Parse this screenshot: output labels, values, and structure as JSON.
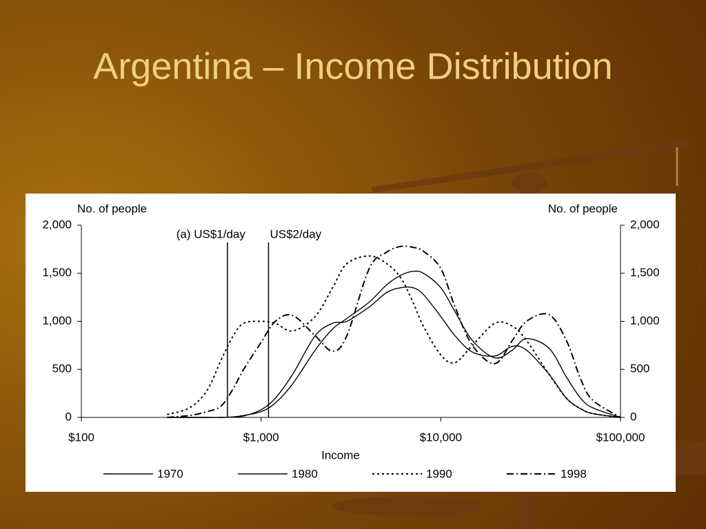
{
  "slide": {
    "title": "Argentina – Income Distribution"
  },
  "chart_data": {
    "type": "line",
    "ylabel": "No. of people",
    "y2label": "No. of people",
    "xlabel": "Income",
    "log_x": true,
    "x": [
      300,
      400,
      500,
      600,
      700,
      800,
      1000,
      1200,
      1500,
      2000,
      2500,
      3000,
      4000,
      5000,
      6000,
      7000,
      8000,
      10000,
      12000,
      15000,
      20000,
      25000,
      30000,
      40000,
      50000,
      60000,
      70000,
      100000
    ],
    "series": [
      {
        "name": "1970",
        "color": "#000000",
        "dash": "solid",
        "values": [
          0,
          0,
          0,
          0,
          5,
          15,
          80,
          200,
          450,
          850,
          980,
          1000,
          1150,
          1300,
          1350,
          1350,
          1280,
          1050,
          850,
          680,
          640,
          740,
          700,
          450,
          200,
          90,
          40,
          0
        ]
      },
      {
        "name": "1980",
        "color": "#000000",
        "dash": "solid",
        "values": [
          0,
          0,
          0,
          0,
          5,
          20,
          60,
          150,
          350,
          700,
          920,
          1030,
          1200,
          1380,
          1480,
          1520,
          1500,
          1350,
          1100,
          800,
          620,
          700,
          820,
          720,
          420,
          200,
          100,
          0
        ]
      },
      {
        "name": "1990",
        "color": "#000000",
        "dash": "dotted",
        "values": [
          30,
          100,
          280,
          600,
          850,
          980,
          1000,
          980,
          900,
          1050,
          1350,
          1600,
          1680,
          1600,
          1450,
          1200,
          950,
          650,
          570,
          750,
          980,
          950,
          800,
          450,
          200,
          90,
          40,
          0
        ]
      },
      {
        "name": "1998",
        "color": "#000000",
        "dash": "dashdot",
        "values": [
          0,
          20,
          60,
          120,
          300,
          500,
          780,
          1000,
          1060,
          850,
          690,
          850,
          1550,
          1720,
          1780,
          1770,
          1730,
          1550,
          1150,
          750,
          560,
          800,
          1000,
          1070,
          800,
          400,
          180,
          0
        ]
      }
    ],
    "xlim": [
      100,
      100000
    ],
    "xticks": [
      {
        "value": 100,
        "label": "$100"
      },
      {
        "value": 1000,
        "label": "$1,000"
      },
      {
        "value": 10000,
        "label": "$10,000"
      },
      {
        "value": 100000,
        "label": "$100,000"
      }
    ],
    "ylim": [
      0,
      2000
    ],
    "yticks": [
      0,
      500,
      {
        "value": 1000,
        "label": "1,000"
      },
      {
        "value": 1500,
        "label": "1,500"
      },
      {
        "value": 2000,
        "label": "2,000"
      }
    ],
    "y2lim": [
      0,
      2000
    ],
    "y2ticks": [
      0,
      500,
      {
        "value": 1000,
        "label": "1,000"
      },
      {
        "value": 1500,
        "label": "1,500"
      },
      {
        "value": 2000,
        "label": "2,000"
      }
    ],
    "annotations": [
      {
        "x": 650,
        "label": "(a) US$1/day"
      },
      {
        "x": 1100,
        "label": "US$2/day"
      }
    ],
    "grid": false
  }
}
